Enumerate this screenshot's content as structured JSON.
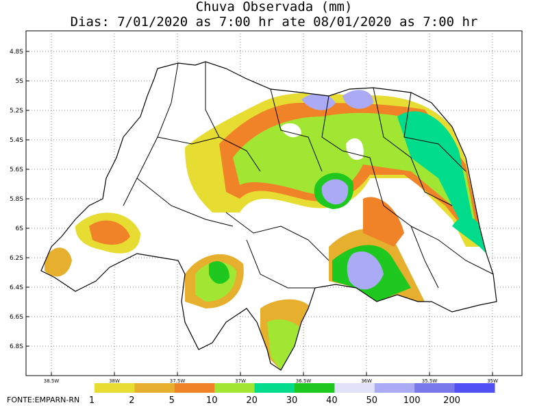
{
  "title": {
    "line1": "Chuva Observada (mm)",
    "line2": "Dias: 7/01/2020 as 7:00 hr ate 08/01/2020 as 7:00 hr"
  },
  "latitude_labels": [
    "4.8S",
    "5S",
    "5.2S",
    "5.4S",
    "5.6S",
    "5.8S",
    "6S",
    "6.2S",
    "6.4S",
    "6.6S",
    "6.8S"
  ],
  "longitude_labels": [
    "38.5W",
    "38W",
    "37.5W",
    "37W",
    "36.5W",
    "36W",
    "35.5W",
    "35W"
  ],
  "legend": {
    "labels": [
      "1",
      "2",
      "5",
      "10",
      "20",
      "30",
      "40",
      "50",
      "100",
      "200"
    ],
    "colors": [
      "#e6dc32",
      "#e6af2d",
      "#f08228",
      "#a0e632",
      "#00dc8c",
      "#1ec81e",
      "#e1e1fa",
      "#aaaaf5",
      "#7878eb",
      "#5050f5"
    ]
  },
  "source": "FONTE:EMPARN-RN"
}
